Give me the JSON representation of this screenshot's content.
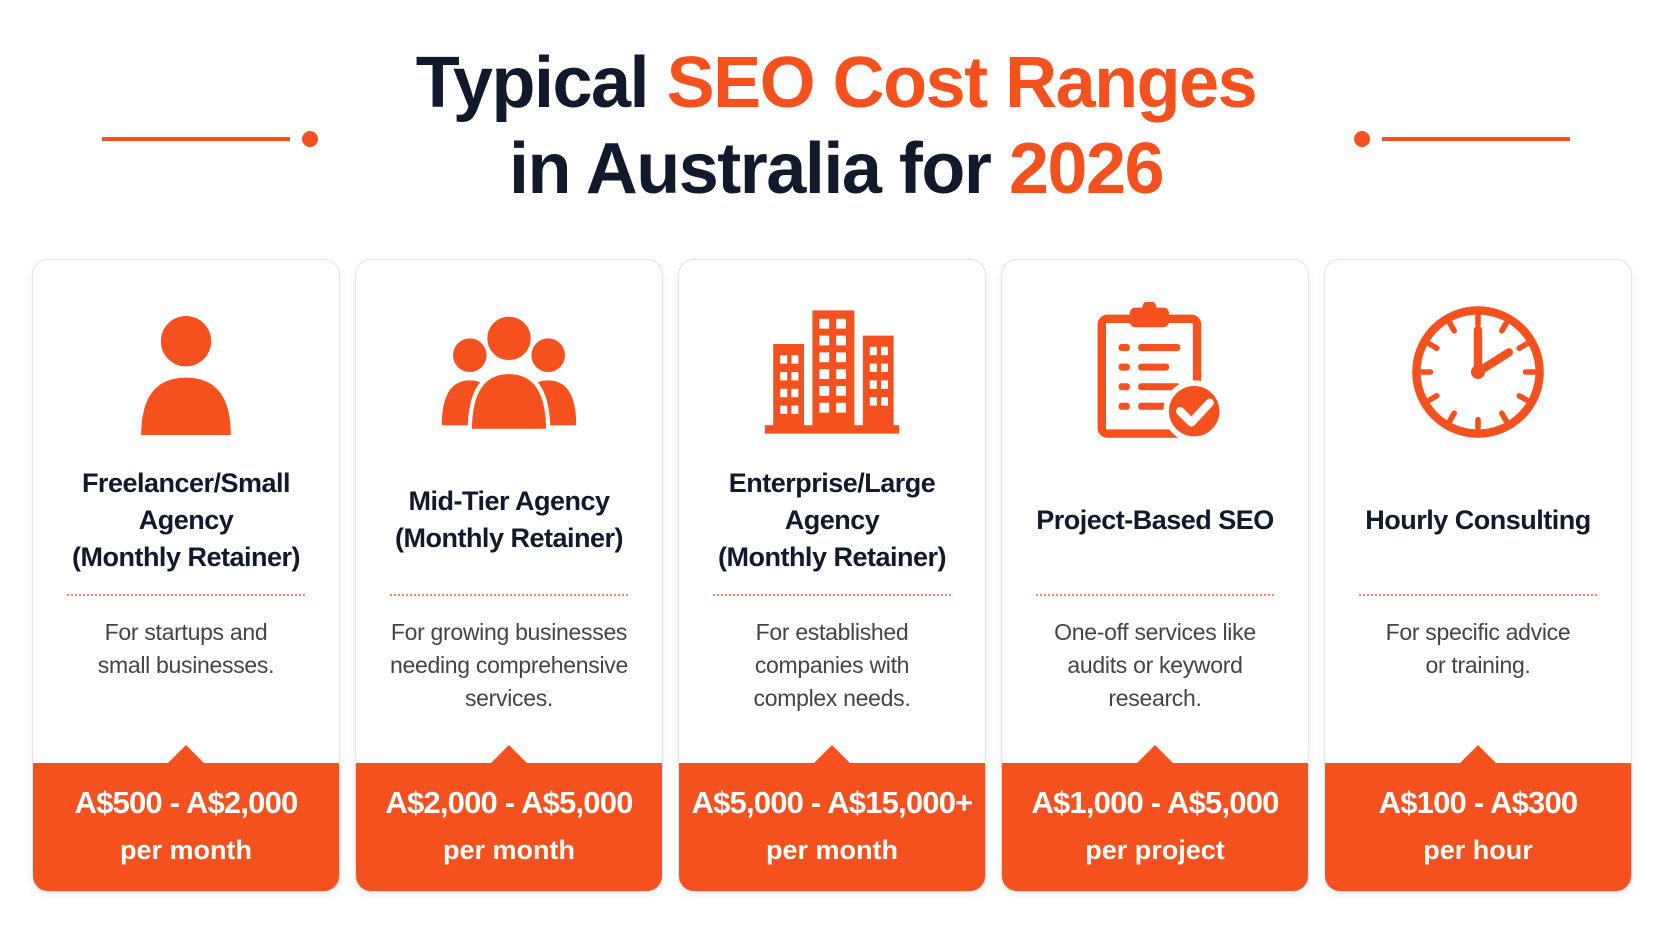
{
  "header": {
    "title_parts": [
      "Typical",
      "SEO Cost Ranges",
      "in Australia for",
      "2026"
    ]
  },
  "cards": [
    {
      "title_lines": [
        "Freelancer/Small",
        "Agency",
        "(Monthly Retainer)"
      ],
      "description_lines": [
        "For startups and",
        "small businesses."
      ],
      "price": "A$500 - A$2,000",
      "unit": "per month"
    },
    {
      "title_lines": [
        "Mid-Tier Agency",
        "(Monthly Retainer)"
      ],
      "description_lines": [
        "For growing businesses",
        "needing comprehensive",
        "services."
      ],
      "price": "A$2,000 - A$5,000",
      "unit": "per month"
    },
    {
      "title_lines": [
        "Enterprise/Large",
        "Agency",
        "(Monthly Retainer)"
      ],
      "description_lines": [
        "For established",
        "companies with",
        "complex needs."
      ],
      "price": "A$5,000 - A$15,000+",
      "unit": "per month"
    },
    {
      "title_lines": [
        "Project-Based SEO"
      ],
      "description_lines": [
        "One-off services like",
        "audits or keyword",
        "research."
      ],
      "price": "A$1,000 - A$5,000",
      "unit": "per project"
    },
    {
      "title_lines": [
        "Hourly Consulting"
      ],
      "description_lines": [
        "For specific advice",
        "or training."
      ],
      "price": "A$100 - A$300",
      "unit": "per hour"
    }
  ]
}
